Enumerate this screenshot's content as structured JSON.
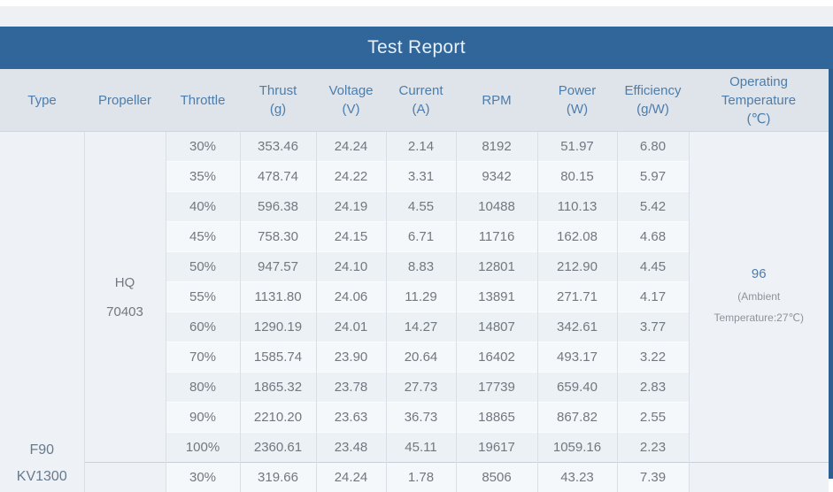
{
  "page": {
    "title": "Test Report"
  },
  "colors": {
    "title_bar": "#31669a",
    "title_text": "#e8f1f8",
    "header_bg": "#dfe4ea",
    "header_text": "#4c7dab",
    "body_text": "#72787f",
    "row_stripe_dark": "#ecf1f6",
    "row_stripe_light": "#f5f8fb",
    "merged_cell_bg": "#eef2f7",
    "grid_line": "#d9dfe8",
    "right_edge_strip": "#2d6090",
    "temp_value_text": "#4c7dab"
  },
  "table": {
    "columns": [
      {
        "name": "Type",
        "unit": ""
      },
      {
        "name": "Propeller",
        "unit": ""
      },
      {
        "name": "Throttle",
        "unit": ""
      },
      {
        "name": "Thrust",
        "unit": "(g)"
      },
      {
        "name": "Voltage",
        "unit": "(V)"
      },
      {
        "name": "Current",
        "unit": "(A)"
      },
      {
        "name": "RPM",
        "unit": ""
      },
      {
        "name": "Power",
        "unit": "(W)"
      },
      {
        "name": "Efficiency",
        "unit": "(g/W)"
      },
      {
        "name": "Operating Temperature",
        "unit": "(℃)"
      }
    ],
    "type_lines": [
      "F90",
      "KV1300"
    ],
    "propeller_lines": [
      "HQ",
      "70403"
    ],
    "operating": {
      "value": "96",
      "note": "(Ambient Temperature:27℃)"
    },
    "rows": [
      {
        "throttle": "30%",
        "thrust": "353.46",
        "voltage": "24.24",
        "current": "2.14",
        "rpm": "8192",
        "power": "51.97",
        "efficiency": "6.80"
      },
      {
        "throttle": "35%",
        "thrust": "478.74",
        "voltage": "24.22",
        "current": "3.31",
        "rpm": "9342",
        "power": "80.15",
        "efficiency": "5.97"
      },
      {
        "throttle": "40%",
        "thrust": "596.38",
        "voltage": "24.19",
        "current": "4.55",
        "rpm": "10488",
        "power": "110.13",
        "efficiency": "5.42"
      },
      {
        "throttle": "45%",
        "thrust": "758.30",
        "voltage": "24.15",
        "current": "6.71",
        "rpm": "11716",
        "power": "162.08",
        "efficiency": "4.68"
      },
      {
        "throttle": "50%",
        "thrust": "947.57",
        "voltage": "24.10",
        "current": "8.83",
        "rpm": "12801",
        "power": "212.90",
        "efficiency": "4.45"
      },
      {
        "throttle": "55%",
        "thrust": "1131.80",
        "voltage": "24.06",
        "current": "11.29",
        "rpm": "13891",
        "power": "271.71",
        "efficiency": "4.17"
      },
      {
        "throttle": "60%",
        "thrust": "1290.19",
        "voltage": "24.01",
        "current": "14.27",
        "rpm": "14807",
        "power": "342.61",
        "efficiency": "3.77"
      },
      {
        "throttle": "70%",
        "thrust": "1585.74",
        "voltage": "23.90",
        "current": "20.64",
        "rpm": "16402",
        "power": "493.17",
        "efficiency": "3.22"
      },
      {
        "throttle": "80%",
        "thrust": "1865.32",
        "voltage": "23.78",
        "current": "27.73",
        "rpm": "17739",
        "power": "659.40",
        "efficiency": "2.83"
      },
      {
        "throttle": "90%",
        "thrust": "2210.20",
        "voltage": "23.63",
        "current": "36.73",
        "rpm": "18865",
        "power": "867.82",
        "efficiency": "2.55"
      },
      {
        "throttle": "100%",
        "thrust": "2360.61",
        "voltage": "23.48",
        "current": "45.11",
        "rpm": "19617",
        "power": "1059.16",
        "efficiency": "2.23"
      },
      {
        "throttle": "30%",
        "thrust": "319.66",
        "voltage": "24.24",
        "current": "1.78",
        "rpm": "8506",
        "power": "43.23",
        "efficiency": "7.39",
        "new_group": true
      }
    ]
  }
}
